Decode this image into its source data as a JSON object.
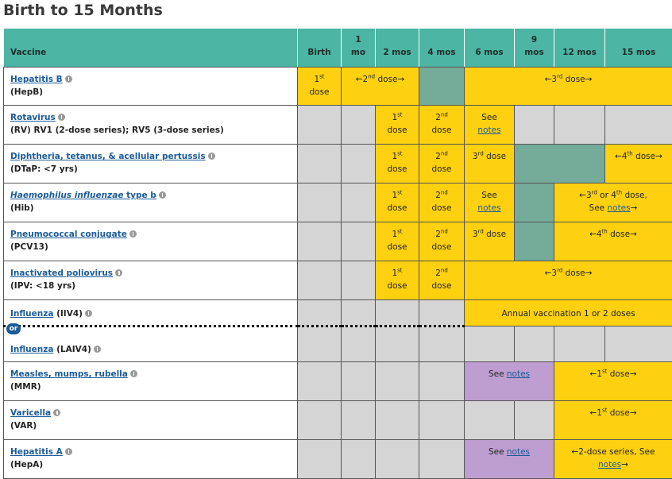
{
  "title": "Birth to 15 Months",
  "header": [
    "Vaccine",
    "Birth",
    [
      "1",
      "mo"
    ],
    "2 mos",
    "4 mos",
    "6 mos",
    [
      "9",
      "mos"
    ],
    "12 mos",
    "15 mos"
  ],
  "or_label": "or",
  "rows": [
    {
      "name": "Hepatitis B",
      "abbr": "(HepB)",
      "cells": [
        [
          "1",
          "st",
          "dose"
        ],
        [
          "←2",
          "nd",
          " dose→"
        ],
        [
          "←3",
          "rd",
          " dose→"
        ]
      ]
    },
    {
      "name": "Rotavirus",
      "abbr": "(RV) RV1 (2-dose series); RV5 (3-dose series)",
      "cells": [
        [
          "1",
          "st",
          "dose"
        ],
        [
          "2",
          "nd",
          "dose"
        ],
        [
          "See",
          "notes"
        ]
      ]
    },
    {
      "name": "Diphtheria, tetanus, & acellular pertussis",
      "abbr": "(DTaP: <7 yrs)",
      "cells": [
        [
          "1",
          "st",
          "dose"
        ],
        [
          "2",
          "nd",
          "dose"
        ],
        [
          "3",
          "rd",
          " dose"
        ],
        [
          "←4",
          "th",
          " dose→"
        ]
      ]
    },
    {
      "name": [
        "Haemophilus influenzae",
        " type b"
      ],
      "abbr": "(Hib)",
      "cells": [
        [
          "1",
          "st",
          "dose"
        ],
        [
          "2",
          "nd",
          "dose"
        ],
        [
          "See",
          "notes"
        ],
        [
          "←3",
          "rd",
          " or 4",
          "th",
          " dose,",
          "See ",
          "notes",
          "→"
        ]
      ]
    },
    {
      "name": "Pneumococcal conjugate",
      "abbr": "(PCV13)",
      "cells": [
        [
          "1",
          "st",
          "dose"
        ],
        [
          "2",
          "nd",
          "dose"
        ],
        [
          "3",
          "rd",
          " dose"
        ],
        [
          "←4",
          "th",
          " dose→"
        ]
      ]
    },
    {
      "name": "Inactivated poliovirus",
      "abbr": "(IPV: <18 yrs)",
      "cells": [
        [
          "1",
          "st",
          "dose"
        ],
        [
          "2",
          "nd",
          "dose"
        ],
        [
          "←3",
          "rd",
          " dose→"
        ]
      ]
    },
    {
      "name": "Influenza",
      "abbr": " (IIV4)",
      "cells": [
        [
          "Annual vaccination 1 or 2 doses"
        ]
      ]
    },
    {
      "name": "Influenza",
      "abbr": " (LAIV4)",
      "cells": []
    },
    {
      "name": "Measles, mumps, rubella",
      "abbr": "(MMR)",
      "cells": [
        [
          "See ",
          "notes"
        ],
        [
          "←1",
          "st",
          " dose→"
        ]
      ]
    },
    {
      "name": "Varicella",
      "abbr": "(VAR)",
      "cells": [
        [
          "←1",
          "st",
          " dose→"
        ]
      ]
    },
    {
      "name": "Hepatitis A",
      "abbr": "(HepA)",
      "cells": [
        [
          "See ",
          "notes"
        ],
        [
          "←2-dose series, See",
          "notes",
          "→"
        ]
      ]
    }
  ]
}
